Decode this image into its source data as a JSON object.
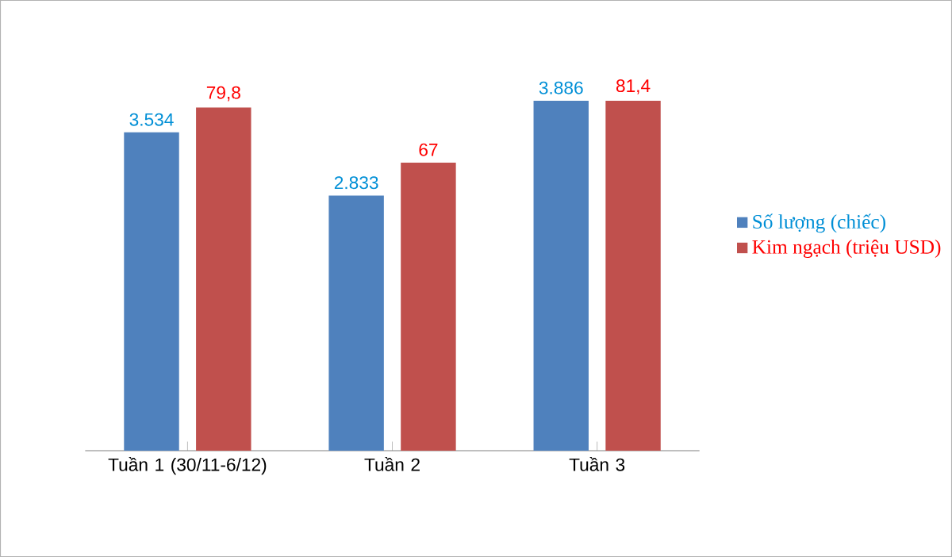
{
  "chart_data": {
    "type": "bar",
    "categories": [
      "Tuần 1 (30/11-6/12)",
      "Tuần 2",
      "Tuần 3"
    ],
    "series": [
      {
        "name": "Số lượng (chiếc)",
        "color": "#4f81bd",
        "values": [
          3534,
          2833,
          3886
        ],
        "value_labels": [
          "3.534",
          "2.833",
          "3.886"
        ]
      },
      {
        "name": "Kim ngạch (triệu USD)",
        "color": "#c0504d",
        "values": [
          79.8,
          67,
          81.4
        ],
        "value_labels": [
          "79,8",
          "67",
          "81,4"
        ],
        "axis": "y2"
      }
    ],
    "tick_labels": "x",
    "legend": "right"
  }
}
